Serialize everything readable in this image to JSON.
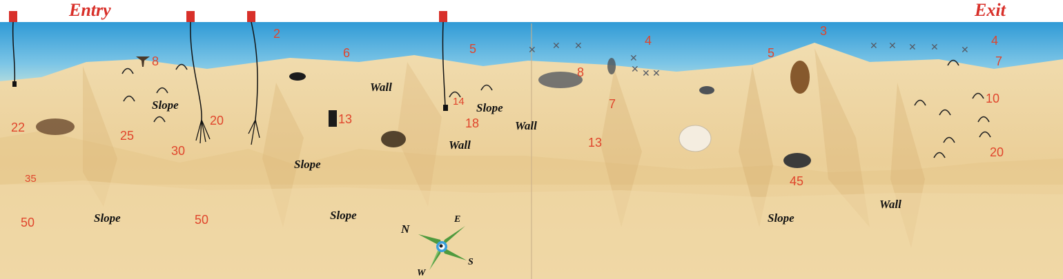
{
  "map": {
    "entry_label": "Entry",
    "exit_label": "Exit",
    "depths": [
      "2",
      "4",
      "3",
      "4",
      "5",
      "6",
      "5",
      "7",
      "8",
      "8",
      "7",
      "10",
      "13",
      "14",
      "18",
      "20",
      "22",
      "25",
      "30",
      "13",
      "35",
      "50",
      "50",
      "45",
      "20"
    ],
    "features": [
      "Slope",
      "Wall",
      "Slope",
      "Wall",
      "Wall",
      "Slope",
      "Slope",
      "Slope",
      "Slope",
      "Wall"
    ],
    "compass": {
      "n": "N",
      "e": "E",
      "s": "S",
      "w": "W"
    },
    "icons": [
      "mooring-buoy-icon",
      "arch-icon",
      "anchor-icon",
      "compass-rose-icon",
      "coral-head-icon",
      "boulder-icon",
      "cross-marker-icon"
    ],
    "colors": {
      "sea": "#3ea7dd",
      "sand": "#ecd29c",
      "marker": "#e0452c",
      "buoy": "#d8302a"
    }
  }
}
